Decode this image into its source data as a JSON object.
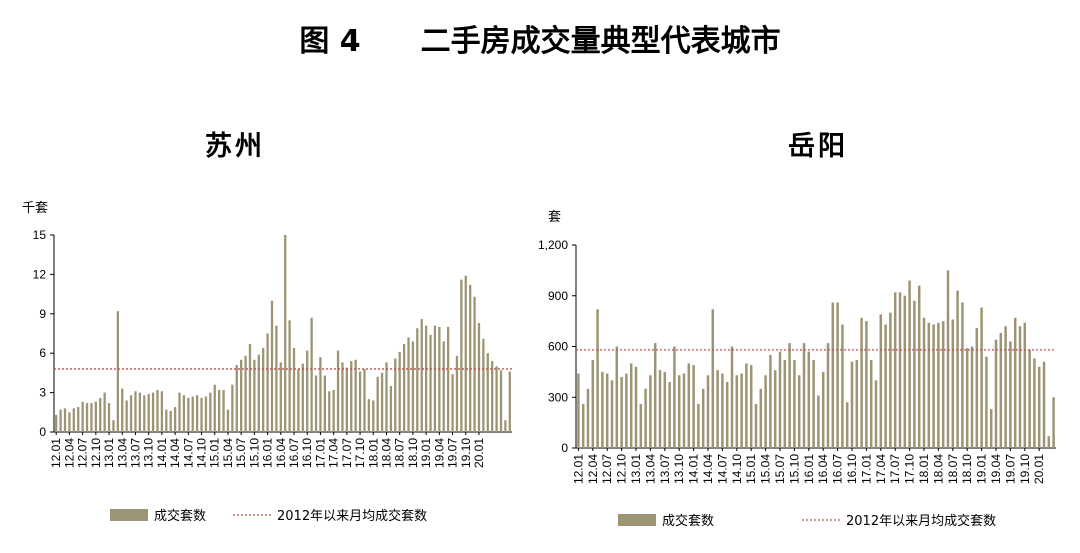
{
  "figure_title": "图 4　　二手房成交量典型代表城市",
  "colors": {
    "bar": "#9C9473",
    "avg_line": "#C0504D",
    "axis": "#000000"
  },
  "chart_data": [
    {
      "type": "bar",
      "title": "苏州",
      "ylabel": "千套",
      "ylim": [
        0,
        15
      ],
      "yticks": [
        0,
        3,
        6,
        9,
        12,
        15
      ],
      "ytick_labels": [
        "0",
        "3",
        "6",
        "9",
        "12",
        "15"
      ],
      "xtick_labels": [
        "12.01",
        "12.04",
        "12.07",
        "12.10",
        "13.01",
        "13.04",
        "13.07",
        "13.10",
        "14.01",
        "14.04",
        "14.07",
        "14.10",
        "15.01",
        "15.04",
        "15.07",
        "15.10",
        "16.01",
        "16.04",
        "16.07",
        "16.10",
        "17.01",
        "17.04",
        "17.07",
        "17.10",
        "18.01",
        "18.04",
        "18.07",
        "18.10",
        "19.01",
        "19.04",
        "19.07",
        "19.10",
        "20.01"
      ],
      "x_start": "2012-01",
      "series": [
        {
          "name": "成交套数",
          "values": [
            1.3,
            1.7,
            1.8,
            1.5,
            1.8,
            1.9,
            2.3,
            2.2,
            2.2,
            2.3,
            2.6,
            3.0,
            2.2,
            0.9,
            9.2,
            3.3,
            2.4,
            2.8,
            3.1,
            3.0,
            2.8,
            2.9,
            3.0,
            3.2,
            3.1,
            1.7,
            1.6,
            1.9,
            3.0,
            2.8,
            2.6,
            2.7,
            2.8,
            2.6,
            2.7,
            3.0,
            3.6,
            3.2,
            3.2,
            1.7,
            3.6,
            5.1,
            5.5,
            5.8,
            6.7,
            5.5,
            5.9,
            6.4,
            7.5,
            10.0,
            8.1,
            5.3,
            15.0,
            8.5,
            6.4,
            4.8,
            5.2,
            6.2,
            8.7,
            4.3,
            5.7,
            4.3,
            3.1,
            3.2,
            6.2,
            5.3,
            4.9,
            5.4,
            5.5,
            4.6,
            4.8,
            2.5,
            2.4,
            4.2,
            4.5,
            5.3,
            3.5,
            5.6,
            6.1,
            6.7,
            7.2,
            6.9,
            7.9,
            8.6,
            8.1,
            7.4,
            8.1,
            8.0,
            6.9,
            8.0,
            4.4,
            5.8,
            11.6,
            11.9,
            11.2,
            10.3,
            8.3,
            7.1,
            6.0,
            5.4,
            5.0,
            4.7,
            0.9,
            4.6
          ]
        }
      ],
      "average": {
        "name": "2012年以来月均成交套数",
        "value": 4.8
      }
    },
    {
      "type": "bar",
      "title": "岳阳",
      "ylabel": "套",
      "ylim": [
        0,
        1200
      ],
      "yticks": [
        0,
        300,
        600,
        900,
        1200
      ],
      "ytick_labels": [
        "0",
        "300",
        "600",
        "900",
        "1,200"
      ],
      "xtick_labels": [
        "12.01",
        "12.04",
        "12.07",
        "12.10",
        "13.01",
        "13.04",
        "13.07",
        "13.10",
        "14.01",
        "14.04",
        "14.07",
        "14.10",
        "15.01",
        "15.04",
        "15.07",
        "15.10",
        "16.01",
        "16.04",
        "16.07",
        "16.10",
        "17.01",
        "17.04",
        "17.07",
        "17.10",
        "18.01",
        "18.04",
        "18.07",
        "18.10",
        "19.01",
        "19.04",
        "19.07",
        "19.10",
        "20.01"
      ],
      "x_start": "2012-01",
      "series": [
        {
          "name": "成交套数",
          "values": [
            440,
            260,
            350,
            520,
            820,
            450,
            440,
            400,
            600,
            420,
            440,
            500,
            480,
            260,
            350,
            430,
            620,
            460,
            450,
            390,
            600,
            430,
            440,
            500,
            490,
            260,
            350,
            430,
            820,
            460,
            440,
            390,
            600,
            430,
            440,
            500,
            490,
            260,
            350,
            430,
            550,
            460,
            570,
            520,
            620,
            520,
            430,
            620,
            570,
            520,
            310,
            450,
            620,
            860,
            860,
            730,
            270,
            510,
            520,
            770,
            750,
            520,
            400,
            790,
            730,
            800,
            920,
            920,
            900,
            990,
            870,
            960,
            770,
            740,
            730,
            740,
            750,
            1050,
            760,
            930,
            860,
            590,
            600,
            710,
            830,
            540,
            230,
            640,
            680,
            720,
            630,
            770,
            720,
            740,
            580,
            530,
            480,
            510,
            70,
            300
          ]
        }
      ],
      "average": {
        "name": "2012年以来月均成交套数",
        "value": 580
      }
    }
  ]
}
